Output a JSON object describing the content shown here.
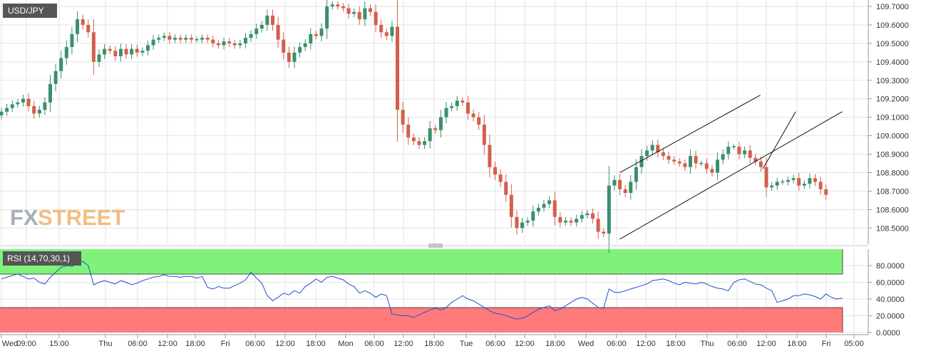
{
  "symbol": "USD/JPY",
  "watermark": {
    "part1": "FX",
    "part2": "STREET"
  },
  "rsi_label": "RSI (14,70,30,1)",
  "colors": {
    "up": "#3a8f6e",
    "down": "#d35f4b",
    "rsi_line": "#1f4fd1",
    "overbought_zone": "#80f27a",
    "oversold_zone": "#ff7b7b",
    "grid": "#e3e3e3",
    "axis_text": "#333333",
    "label_bg": "#555555"
  },
  "chart_data": [
    {
      "type": "candlestick",
      "name": "USD/JPY",
      "ylim": [
        108.43,
        109.72
      ],
      "y_ticks": [
        "109.7000",
        "109.6000",
        "109.5000",
        "109.4000",
        "109.3000",
        "109.2000",
        "109.1000",
        "109.0000",
        "108.9000",
        "108.8000",
        "108.7000",
        "108.6000",
        "108.5000"
      ],
      "x_ticks": [
        "Wed",
        "09:00",
        "15:00",
        "Thu",
        "06:00",
        "12:00",
        "18:00",
        "Fri",
        "06:00",
        "12:00",
        "18:00",
        "Mon",
        "06:00",
        "12:00",
        "18:00",
        "Tue",
        "06:00",
        "12:00",
        "18:00",
        "Wed",
        "06:00",
        "12:00",
        "18:00",
        "Thu",
        "06:00",
        "12:00",
        "18:00",
        "Fri",
        "05:00"
      ],
      "closes": [
        109.13,
        109.15,
        109.17,
        109.18,
        109.2,
        109.16,
        109.12,
        109.14,
        109.18,
        109.28,
        109.35,
        109.42,
        109.48,
        109.55,
        109.63,
        109.6,
        109.56,
        109.4,
        109.44,
        109.47,
        109.46,
        109.43,
        109.47,
        109.44,
        109.47,
        109.45,
        109.46,
        109.49,
        109.52,
        109.53,
        109.54,
        109.52,
        109.53,
        109.52,
        109.53,
        109.52,
        109.52,
        109.53,
        109.52,
        109.5,
        109.49,
        109.51,
        109.5,
        109.49,
        109.5,
        109.53,
        109.55,
        109.58,
        109.6,
        109.65,
        109.6,
        109.52,
        109.45,
        109.4,
        109.45,
        109.48,
        109.5,
        109.55,
        109.54,
        109.58,
        109.7,
        109.71,
        109.7,
        109.69,
        109.66,
        109.67,
        109.63,
        109.69,
        109.67,
        109.6,
        109.56,
        109.54,
        109.59,
        109.14,
        109.06,
        108.99,
        108.97,
        108.95,
        108.97,
        109.04,
        109.03,
        109.1,
        109.15,
        109.16,
        109.19,
        109.18,
        109.12,
        109.1,
        109.06,
        108.95,
        108.83,
        108.79,
        108.75,
        108.68,
        108.56,
        108.5,
        108.53,
        108.54,
        108.59,
        108.61,
        108.63,
        108.65,
        108.56,
        108.53,
        108.54,
        108.53,
        108.55,
        108.57,
        108.58,
        108.55,
        108.48,
        108.47,
        108.73,
        108.76,
        108.71,
        108.69,
        108.75,
        108.83,
        108.89,
        108.92,
        108.95,
        108.91,
        108.89,
        108.87,
        108.86,
        108.85,
        108.83,
        108.89,
        108.85,
        108.85,
        108.82,
        108.8,
        108.87,
        108.9,
        108.94,
        108.94,
        108.9,
        108.92,
        108.88,
        108.86,
        108.83,
        108.72,
        108.73,
        108.75,
        108.75,
        108.76,
        108.77,
        108.73,
        108.74,
        108.77,
        108.75,
        108.71,
        108.68
      ],
      "channel_lines": [
        {
          "from": [
            108.44,
            114
          ],
          "to": [
            109.13,
            155
          ]
        },
        {
          "from": [
            108.8,
            114
          ],
          "to": [
            109.22,
            139.9
          ]
        },
        {
          "from": [
            108.82,
            140.35
          ],
          "to": [
            109.13,
            146.4
          ]
        }
      ]
    },
    {
      "type": "line",
      "name": "RSI (14,70,30,1)",
      "ylim": [
        0,
        100
      ],
      "y_ticks": [
        "80.0000",
        "60.0000",
        "40.0000",
        "20.0000",
        "0.0000"
      ],
      "zones": [
        {
          "name": "overbought",
          "from": 70,
          "to": 100
        },
        {
          "name": "oversold",
          "from": 0,
          "to": 30
        }
      ],
      "values": [
        64,
        66,
        68,
        70,
        67,
        64,
        65,
        60,
        58,
        66,
        72,
        78,
        80,
        79,
        82,
        85,
        80,
        57,
        60,
        62,
        60,
        58,
        62,
        60,
        57,
        59,
        62,
        64,
        66,
        67,
        69,
        67,
        67,
        66,
        67,
        67,
        65,
        67,
        54,
        52,
        55,
        53,
        53,
        56,
        59,
        63,
        72,
        65,
        59,
        44,
        38,
        42,
        47,
        45,
        50,
        47,
        55,
        59,
        64,
        60,
        66,
        67,
        65,
        63,
        58,
        55,
        47,
        50,
        47,
        42,
        46,
        44,
        22,
        21,
        20,
        20,
        18,
        21,
        24,
        27,
        29,
        27,
        30,
        36,
        40,
        44,
        40,
        38,
        34,
        30,
        26,
        23,
        22,
        20,
        18,
        16,
        17,
        20,
        24,
        28,
        30,
        32,
        26,
        28,
        32,
        36,
        40,
        42,
        40,
        35,
        30,
        29,
        52,
        48,
        48,
        50,
        52,
        54,
        56,
        58,
        62,
        63,
        64,
        62,
        59,
        57,
        60,
        59,
        58,
        60,
        58,
        55,
        53,
        52,
        50,
        60,
        63,
        64,
        61,
        58,
        57,
        53,
        50,
        36,
        38,
        40,
        44,
        44,
        46,
        45,
        43,
        40,
        46,
        42,
        40,
        41
      ]
    }
  ]
}
